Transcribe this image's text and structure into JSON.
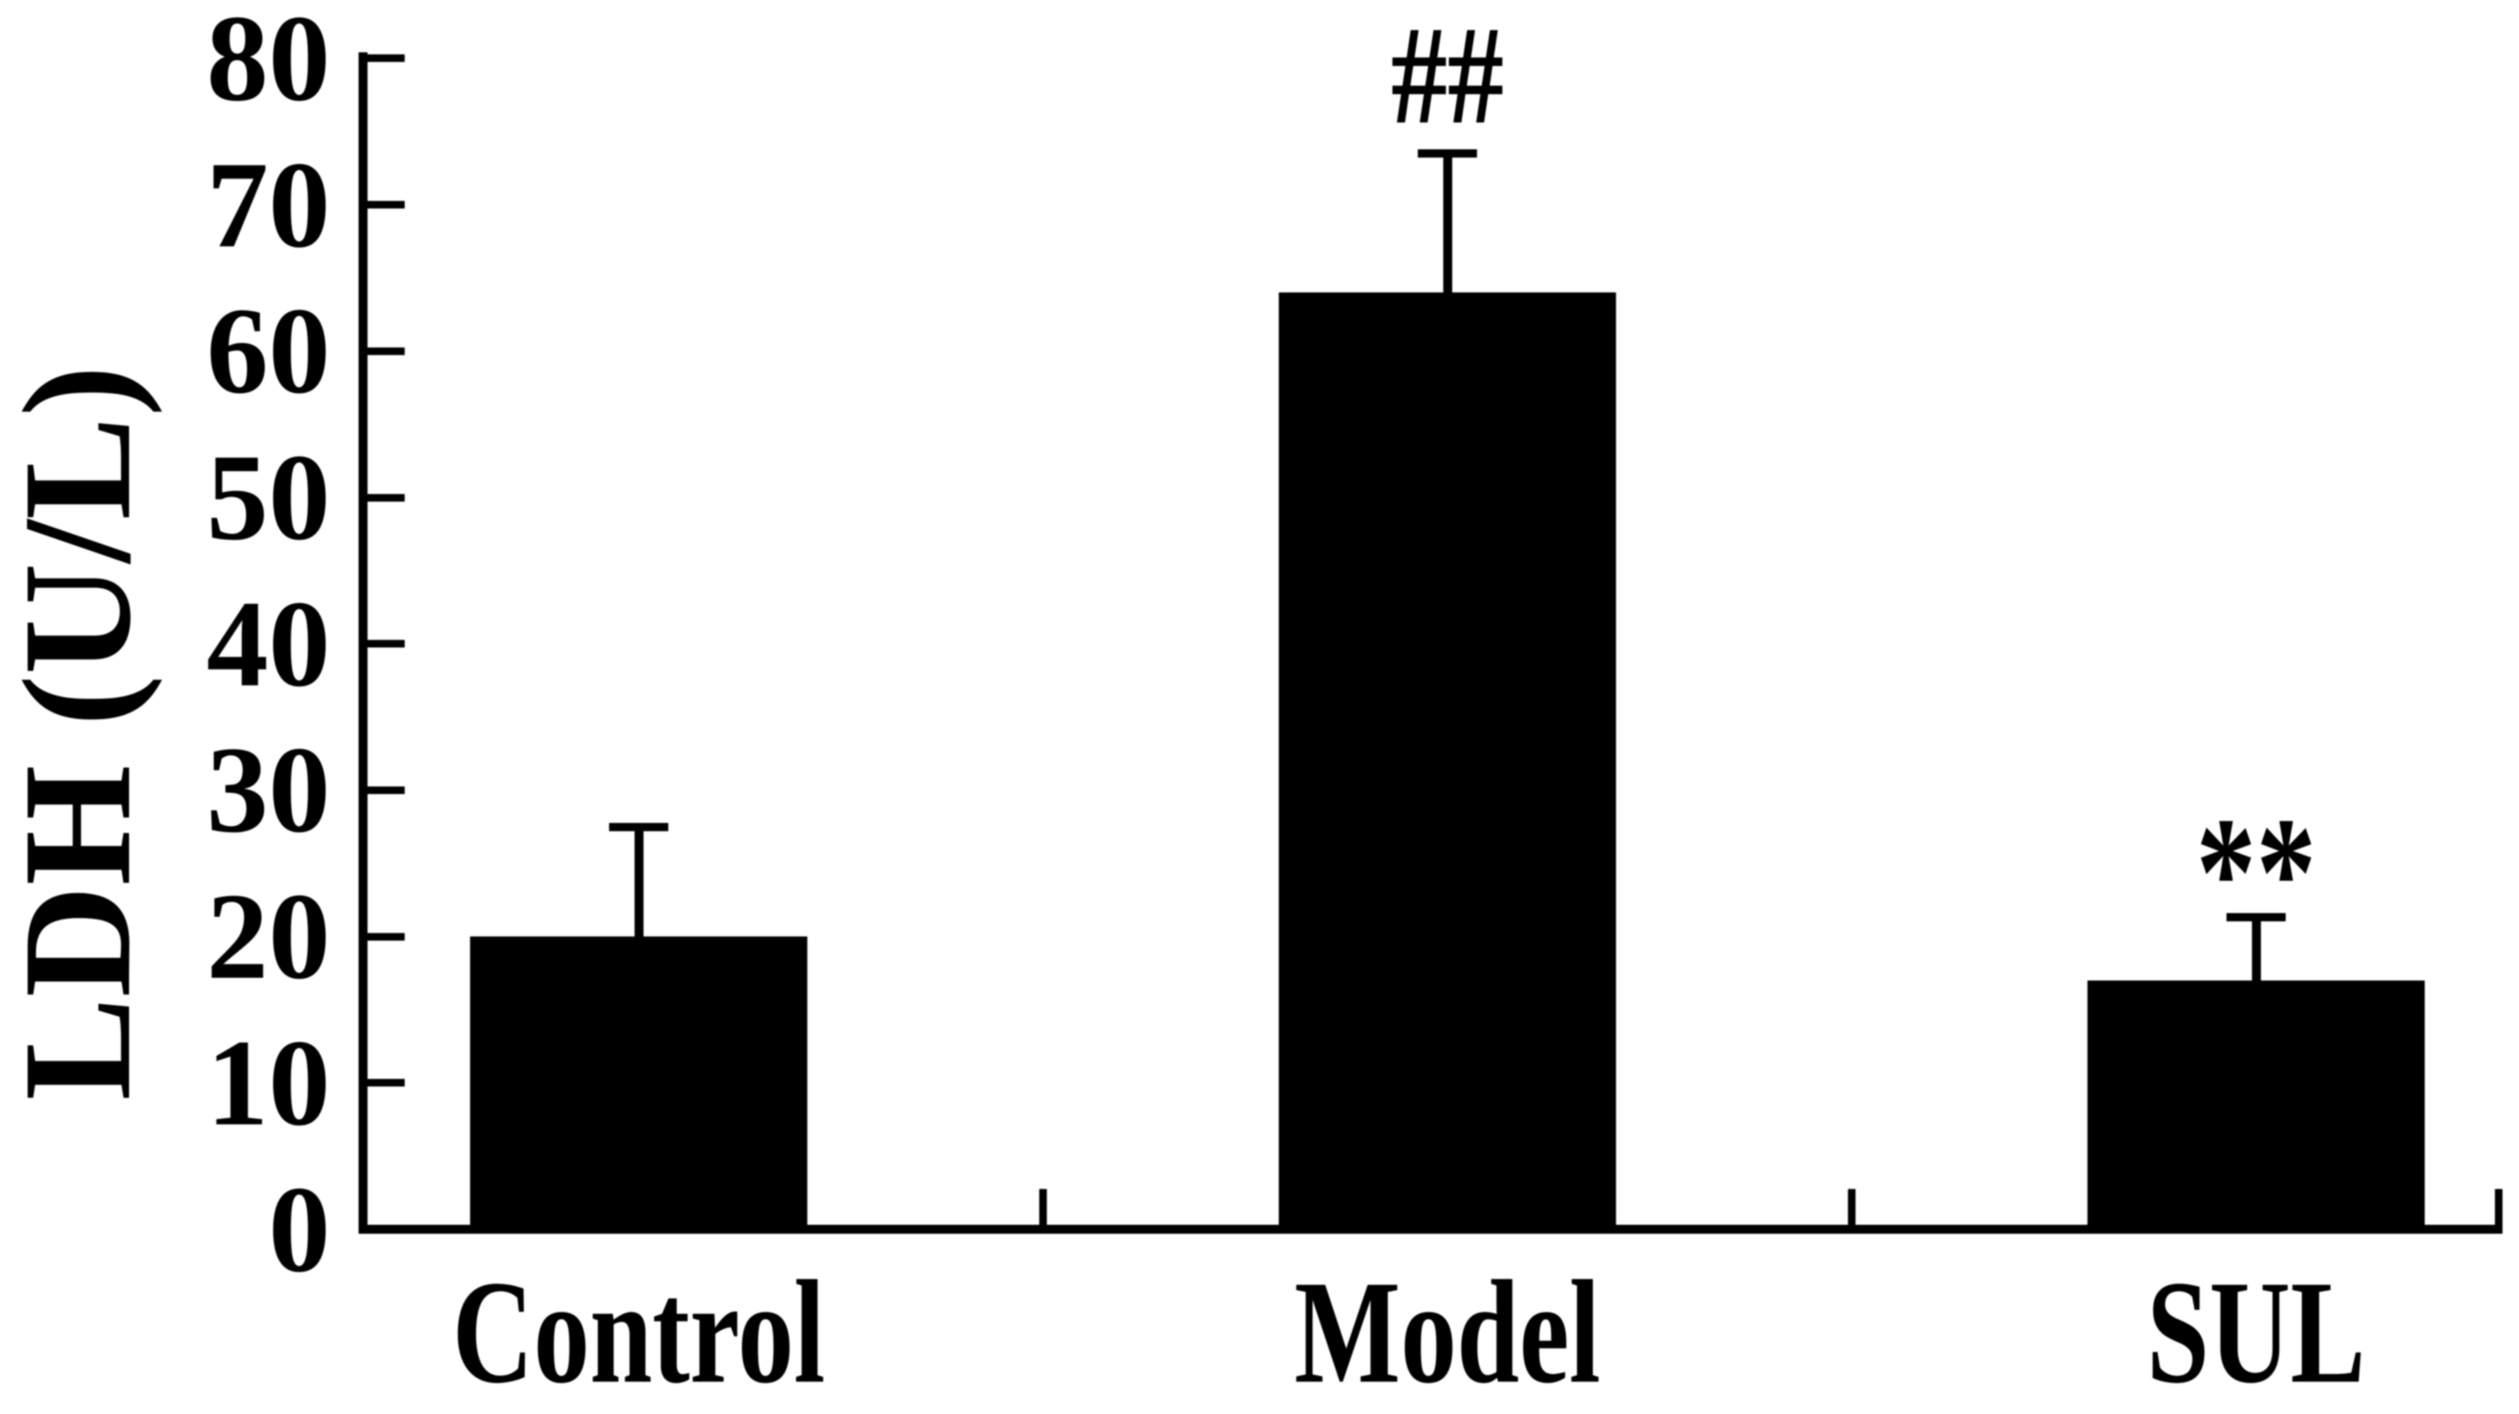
{
  "figure": {
    "background_color": "#ffffff",
    "ink_color": "#000000"
  },
  "chart_data": {
    "type": "bar",
    "title": "",
    "xlabel": "",
    "ylabel": "LDH (U/L)",
    "categories": [
      "Control",
      "Model",
      "SUL"
    ],
    "values": [
      20,
      64,
      17
    ],
    "error_plus": [
      7.5,
      9.5,
      4.3
    ],
    "annotations": [
      {
        "category": "Model",
        "category_index": 1,
        "text": "##"
      },
      {
        "category": "SUL",
        "category_index": 2,
        "text": "**"
      }
    ],
    "yticks": [
      0,
      10,
      20,
      30,
      40,
      50,
      60,
      70,
      80
    ],
    "ylim": [
      0,
      80
    ],
    "grid": false,
    "legend": "none",
    "bar_color": "#000000",
    "error_bar_color": "#000000"
  }
}
